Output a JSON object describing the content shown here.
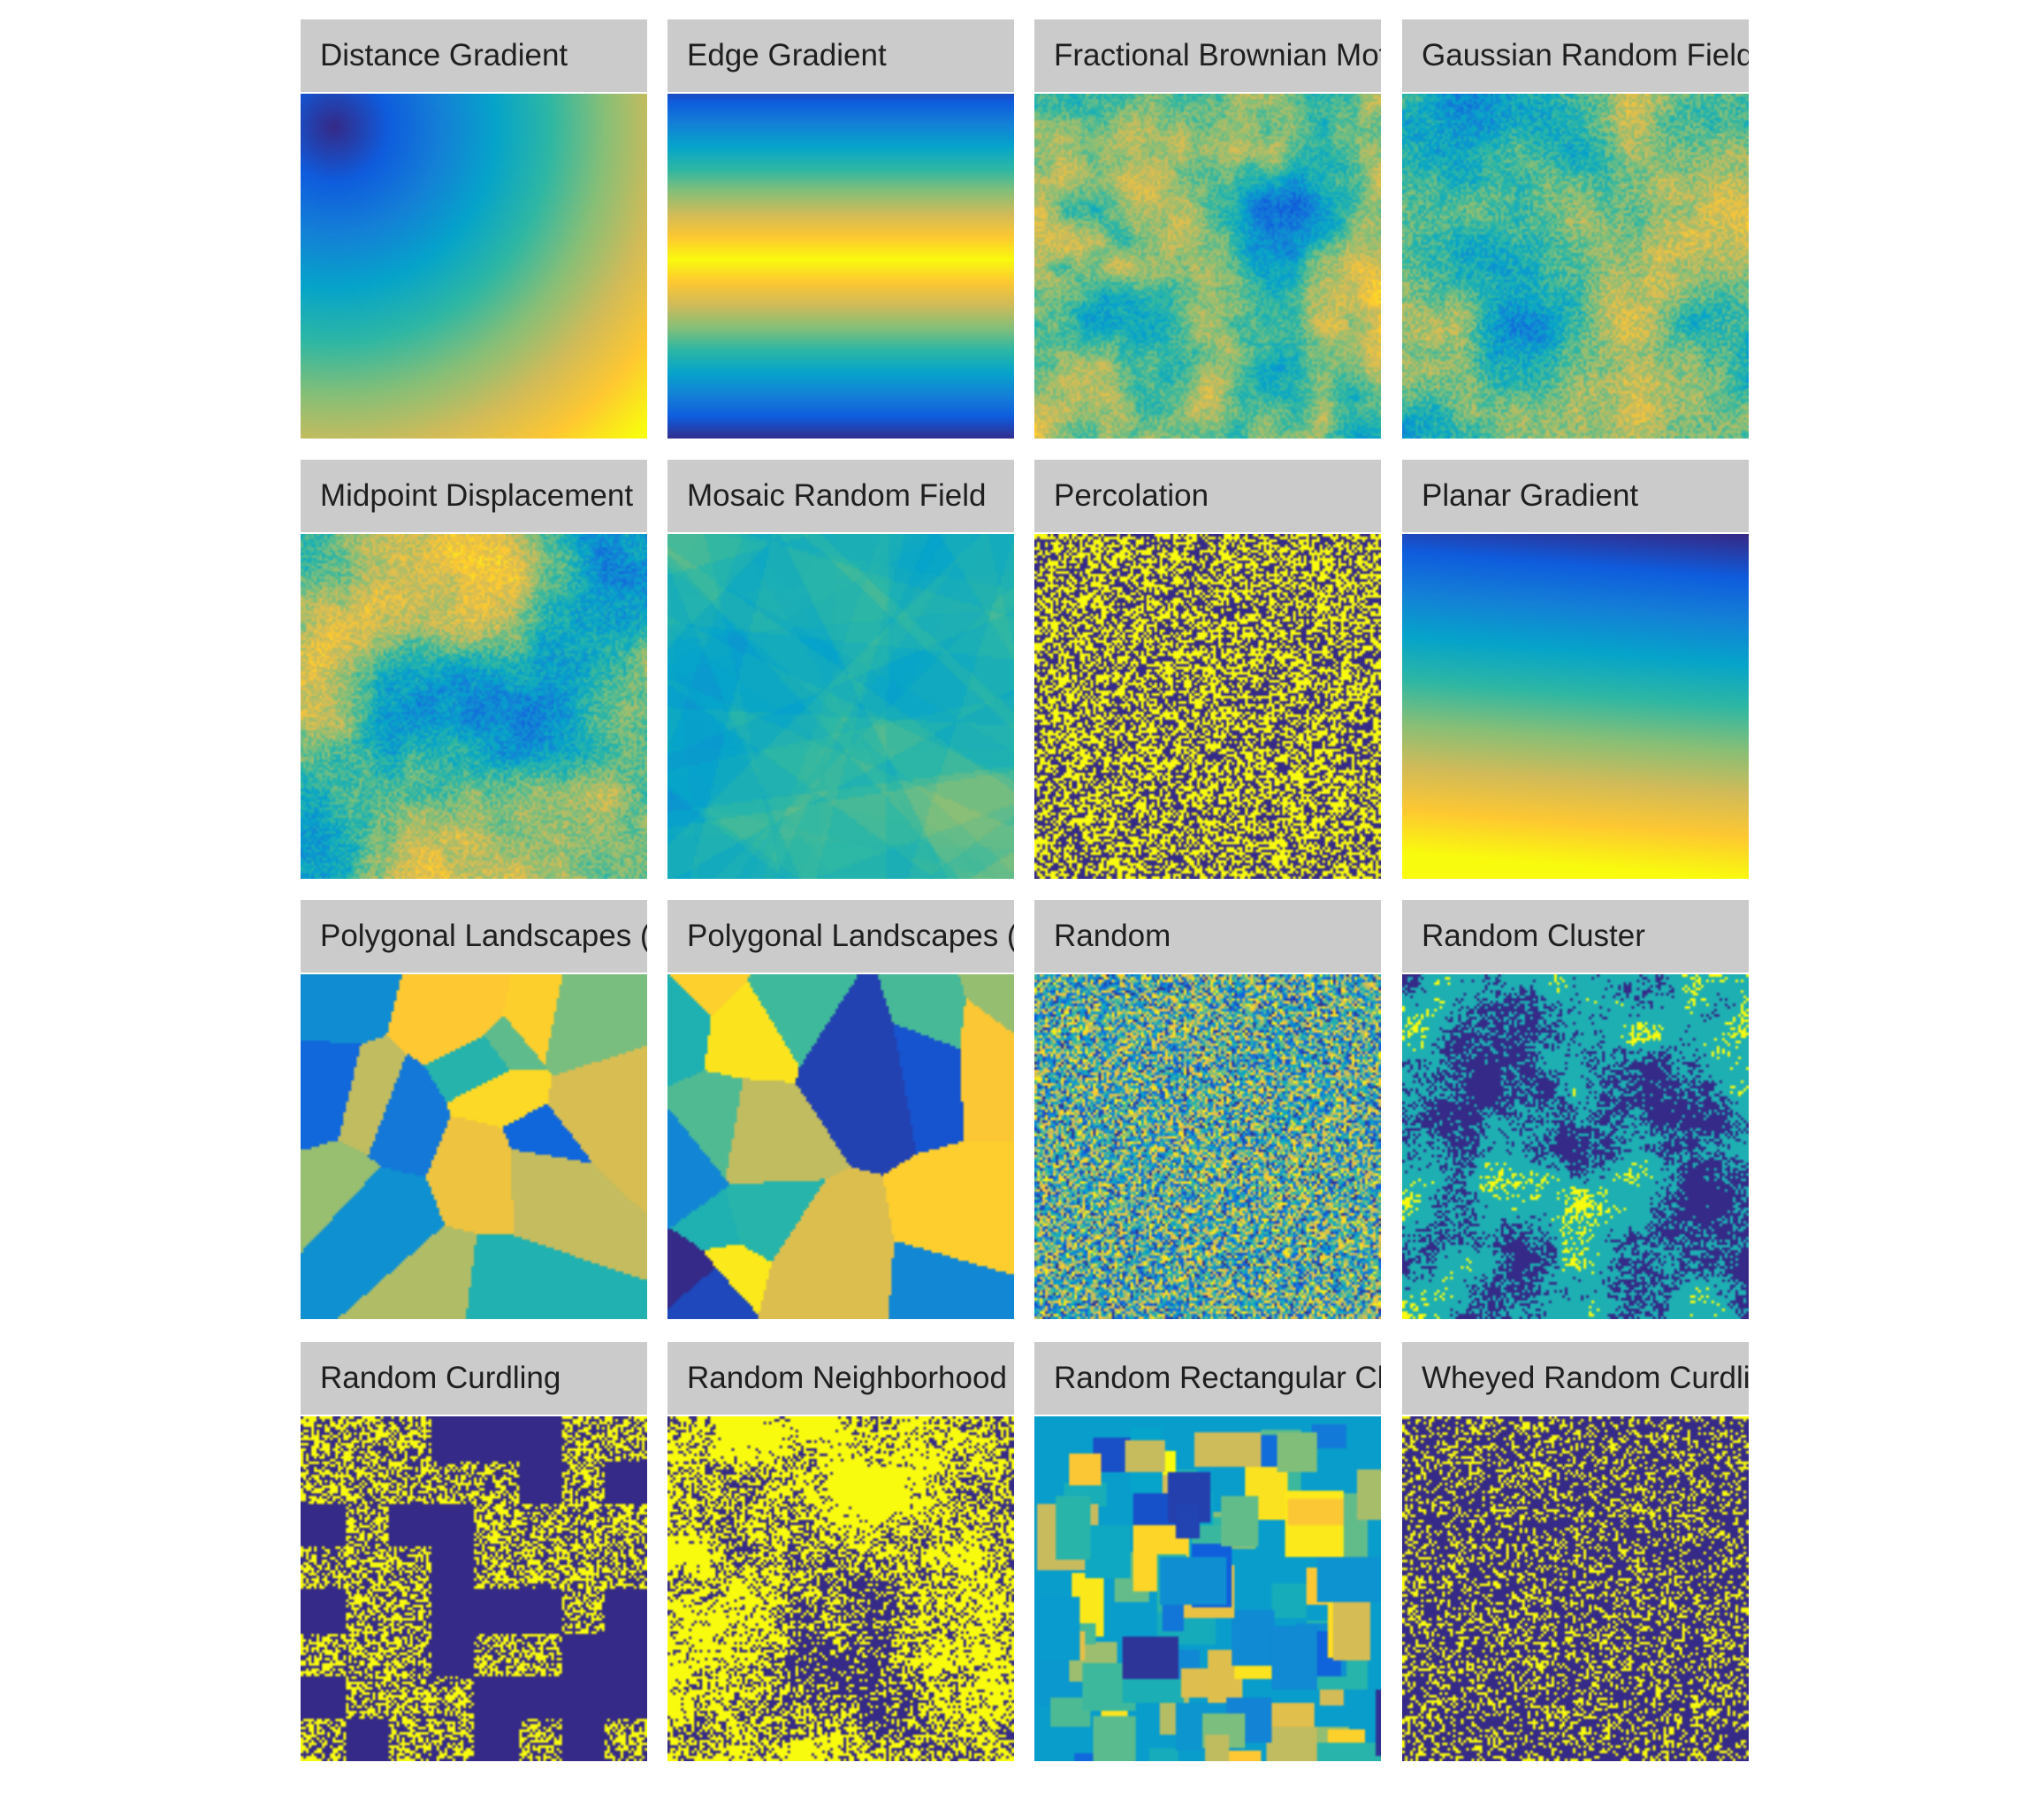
{
  "panels": [
    {
      "title": "Distance Gradient",
      "pattern": "distance-gradient"
    },
    {
      "title": "Edge Gradient",
      "pattern": "edge-gradient"
    },
    {
      "title": "Fractional Brownian Motio",
      "pattern": "fractional-brownian-motion"
    },
    {
      "title": "Gaussian Random Field",
      "pattern": "gaussian-random-field"
    },
    {
      "title": "Midpoint Displacement",
      "pattern": "midpoint-displacement"
    },
    {
      "title": "Mosaic Random Field",
      "pattern": "mosaic-random-field"
    },
    {
      "title": "Percolation",
      "pattern": "percolation"
    },
    {
      "title": "Planar Gradient",
      "pattern": "planar-gradient"
    },
    {
      "title": "Polygonal Landscapes (G",
      "pattern": "polygonal-landscapes-g"
    },
    {
      "title": "Polygonal Landscapes (Te",
      "pattern": "polygonal-landscapes-t"
    },
    {
      "title": "Random",
      "pattern": "random"
    },
    {
      "title": "Random Cluster",
      "pattern": "random-cluster"
    },
    {
      "title": "Random Curdling",
      "pattern": "random-curdling"
    },
    {
      "title": "Random Neighborhood",
      "pattern": "random-neighborhood"
    },
    {
      "title": "Random Rectangular Clus",
      "pattern": "random-rectangular-cluster"
    },
    {
      "title": "Wheyed Random Curdling",
      "pattern": "wheyed-random-curdling"
    }
  ],
  "colormap": [
    "#352a87",
    "#0f5cdd",
    "#1481d6",
    "#06a4ca",
    "#2eb7a4",
    "#87bf77",
    "#d1bb59",
    "#fec832",
    "#f9fb0e"
  ],
  "title_bar_color": "#cbcbcb"
}
